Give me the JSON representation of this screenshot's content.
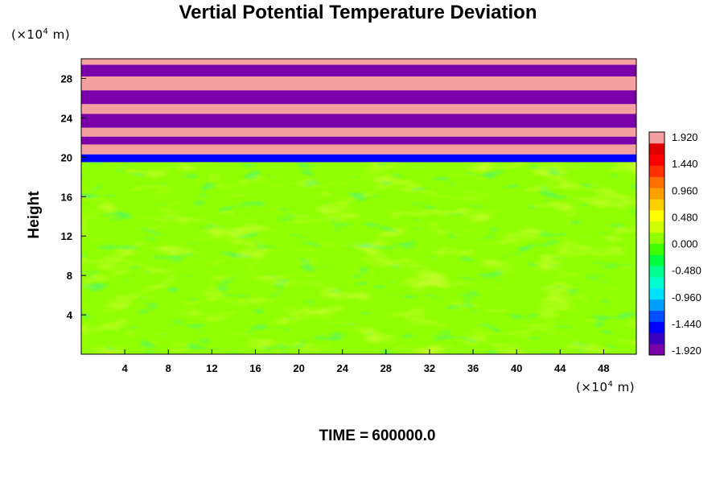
{
  "chart_data": {
    "type": "heatmap",
    "title": "Vertial Potential Temperature Deviation",
    "xlabel": "",
    "ylabel": "Height",
    "x_unit": {
      "prefix": "(×10",
      "exp": "4",
      "suffix": " m)"
    },
    "y_unit": {
      "prefix": "(×10",
      "exp": "4",
      "suffix": " m)"
    },
    "xlim": [
      0,
      51
    ],
    "ylim": [
      0,
      30
    ],
    "x_ticks": [
      "4",
      "8",
      "12",
      "16",
      "20",
      "24",
      "28",
      "32",
      "36",
      "40",
      "44",
      "48"
    ],
    "y_ticks": [
      "4",
      "8",
      "12",
      "16",
      "20",
      "24",
      "28"
    ],
    "colorbar": {
      "range": [
        -1.92,
        1.92
      ],
      "tick_labels": [
        "1.920",
        "1.440",
        "0.960",
        "0.480",
        "0.000",
        "-0.480",
        "-0.960",
        "-1.440",
        "-1.920"
      ],
      "colors": [
        "#7a00a8",
        "#3a00c0",
        "#0000ff",
        "#0050ff",
        "#00a0ff",
        "#00e0ff",
        "#00ffd0",
        "#00ff90",
        "#00ff40",
        "#40ff00",
        "#90ff00",
        "#d0ff00",
        "#ffff00",
        "#ffd000",
        "#ffa000",
        "#ff7000",
        "#ff3000",
        "#ff0000",
        "#e00000",
        "#f4a0a0"
      ]
    },
    "bands": [
      {
        "y0": 0,
        "y1": 19.5,
        "value": 0.05
      },
      {
        "y0": 19.5,
        "y1": 20.3,
        "value": -1.5
      },
      {
        "y0": 20.3,
        "y1": 21.3,
        "value": 1.92
      },
      {
        "y0": 21.3,
        "y1": 22.1,
        "value": -1.92
      },
      {
        "y0": 22.1,
        "y1": 23.0,
        "value": 1.92
      },
      {
        "y0": 23.0,
        "y1": 24.4,
        "value": -1.92
      },
      {
        "y0": 24.4,
        "y1": 25.4,
        "value": 1.92
      },
      {
        "y0": 25.4,
        "y1": 26.8,
        "value": -1.92
      },
      {
        "y0": 26.8,
        "y1": 28.2,
        "value": 1.92
      },
      {
        "y0": 28.2,
        "y1": 29.4,
        "value": -1.92
      },
      {
        "y0": 29.4,
        "y1": 30.0,
        "value": 1.92
      }
    ],
    "grid": false
  },
  "footer": {
    "label": "TIME =",
    "value": "600000.0"
  }
}
